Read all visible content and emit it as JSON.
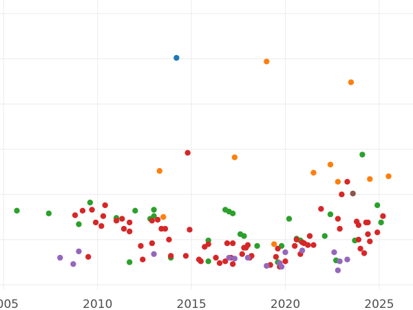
{
  "chart_data": {
    "type": "scatter",
    "title": "",
    "xlabel": "",
    "ylabel": "",
    "xlim": [
      2004.8,
      2026.8
    ],
    "ylim": [
      -0.5,
      31.5
    ],
    "x_ticks": [
      2005,
      2010,
      2015,
      2020,
      2025
    ],
    "x_tick_labels": [
      "2005",
      "2010",
      "2015",
      "2020",
      "2025"
    ],
    "y_gridlines": [
      0,
      5,
      10,
      15,
      20,
      25,
      30
    ],
    "grid": true,
    "legend": "none",
    "series": [
      {
        "color": "#1f77b4",
        "points": [
          [
            2014.2,
            25.1
          ]
        ]
      },
      {
        "color": "#ff7f0e",
        "points": [
          [
            2019.0,
            24.7
          ],
          [
            2023.5,
            22.4
          ],
          [
            2017.3,
            14.1
          ],
          [
            2013.3,
            12.6
          ],
          [
            2022.4,
            13.3
          ],
          [
            2021.5,
            12.4
          ],
          [
            2022.8,
            11.4
          ],
          [
            2024.5,
            11.7
          ],
          [
            2025.5,
            12.0
          ],
          [
            2013.5,
            7.5
          ],
          [
            2019.4,
            4.5
          ]
        ]
      },
      {
        "color": "#2ca02c",
        "points": [
          [
            2005.7,
            8.2
          ],
          [
            2007.4,
            7.9
          ],
          [
            2009.0,
            6.7
          ],
          [
            2009.6,
            9.1
          ],
          [
            2011.0,
            7.4
          ],
          [
            2011.7,
            2.5
          ],
          [
            2012.0,
            8.2
          ],
          [
            2012.8,
            7.3
          ],
          [
            2013.0,
            8.3
          ],
          [
            2013.0,
            7.6
          ],
          [
            2013.9,
            3.0
          ],
          [
            2015.9,
            4.9
          ],
          [
            2015.9,
            2.6
          ],
          [
            2016.8,
            8.3
          ],
          [
            2017.0,
            8.1
          ],
          [
            2017.2,
            7.9
          ],
          [
            2017.6,
            5.6
          ],
          [
            2017.8,
            5.4
          ],
          [
            2018.5,
            4.3
          ],
          [
            2019.6,
            2.5
          ],
          [
            2019.8,
            4.3
          ],
          [
            2020.2,
            7.3
          ],
          [
            2020.6,
            5.1
          ],
          [
            2020.8,
            4.9
          ],
          [
            2022.1,
            5.4
          ],
          [
            2022.4,
            7.8
          ],
          [
            2022.7,
            2.7
          ],
          [
            2023.7,
            4.9
          ],
          [
            2024.1,
            14.4
          ],
          [
            2024.9,
            8.8
          ],
          [
            2025.1,
            6.9
          ]
        ]
      },
      {
        "color": "#d62728",
        "points": [
          [
            2008.8,
            7.7
          ],
          [
            2009.2,
            8.2
          ],
          [
            2009.5,
            3.1
          ],
          [
            2009.7,
            8.3
          ],
          [
            2009.9,
            6.9
          ],
          [
            2010.2,
            6.5
          ],
          [
            2010.3,
            7.6
          ],
          [
            2010.4,
            8.8
          ],
          [
            2011.0,
            7.1
          ],
          [
            2011.3,
            7.3
          ],
          [
            2011.4,
            6.2
          ],
          [
            2011.7,
            5.9
          ],
          [
            2011.7,
            6.9
          ],
          [
            2012.3,
            4.3
          ],
          [
            2012.4,
            2.8
          ],
          [
            2012.9,
            7.1
          ],
          [
            2012.9,
            4.6
          ],
          [
            2013.2,
            7.2
          ],
          [
            2013.4,
            6.2
          ],
          [
            2013.6,
            6.2
          ],
          [
            2013.8,
            5.0
          ],
          [
            2013.9,
            3.2
          ],
          [
            2014.7,
            3.2
          ],
          [
            2014.8,
            14.6
          ],
          [
            2014.9,
            6.1
          ],
          [
            2015.4,
            2.8
          ],
          [
            2015.5,
            2.6
          ],
          [
            2015.7,
            4.2
          ],
          [
            2015.9,
            4.5
          ],
          [
            2016.3,
            3.0
          ],
          [
            2016.5,
            2.4
          ],
          [
            2016.8,
            2.6
          ],
          [
            2016.9,
            4.6
          ],
          [
            2017.1,
            3.0
          ],
          [
            2017.2,
            2.3
          ],
          [
            2017.2,
            4.6
          ],
          [
            2017.7,
            3.4
          ],
          [
            2017.8,
            4.1
          ],
          [
            2017.9,
            4.1
          ],
          [
            2018.0,
            4.4
          ],
          [
            2018.1,
            3.0
          ],
          [
            2018.2,
            3.2
          ],
          [
            2019.2,
            2.2
          ],
          [
            2019.5,
            3.1
          ],
          [
            2019.6,
            4.0
          ],
          [
            2019.7,
            2.0
          ],
          [
            2020.0,
            2.6
          ],
          [
            2020.5,
            4.3
          ],
          [
            2020.6,
            5.0
          ],
          [
            2020.8,
            3.4
          ],
          [
            2020.9,
            4.7
          ],
          [
            2021.0,
            4.6
          ],
          [
            2021.2,
            4.4
          ],
          [
            2021.3,
            5.4
          ],
          [
            2021.5,
            4.4
          ],
          [
            2021.9,
            8.4
          ],
          [
            2022.8,
            7.3
          ],
          [
            2022.9,
            6.2
          ],
          [
            2023.0,
            10.0
          ],
          [
            2023.3,
            11.4
          ],
          [
            2023.8,
            7.0
          ],
          [
            2023.9,
            6.6
          ],
          [
            2023.9,
            5.0
          ],
          [
            2024.0,
            4.0
          ],
          [
            2024.2,
            3.5
          ],
          [
            2024.3,
            6.9
          ],
          [
            2024.4,
            6.9
          ],
          [
            2024.4,
            5.6
          ],
          [
            2024.5,
            4.8
          ],
          [
            2024.9,
            5.8
          ],
          [
            2025.2,
            7.6
          ]
        ]
      },
      {
        "color": "#9467bd",
        "points": [
          [
            2008.0,
            3.0
          ],
          [
            2008.7,
            2.3
          ],
          [
            2009.0,
            3.7
          ],
          [
            2013.0,
            3.4
          ],
          [
            2017.0,
            3.0
          ],
          [
            2017.3,
            2.9
          ],
          [
            2018.0,
            3.0
          ],
          [
            2019.0,
            2.1
          ],
          [
            2019.7,
            2.4
          ],
          [
            2019.8,
            2.0
          ],
          [
            2020.0,
            3.6
          ],
          [
            2020.9,
            3.8
          ],
          [
            2022.6,
            3.6
          ],
          [
            2022.8,
            1.6
          ],
          [
            2022.9,
            2.6
          ],
          [
            2023.3,
            2.8
          ]
        ]
      },
      {
        "color": "#8c564b",
        "points": [
          [
            2023.6,
            10.1
          ]
        ]
      }
    ]
  }
}
